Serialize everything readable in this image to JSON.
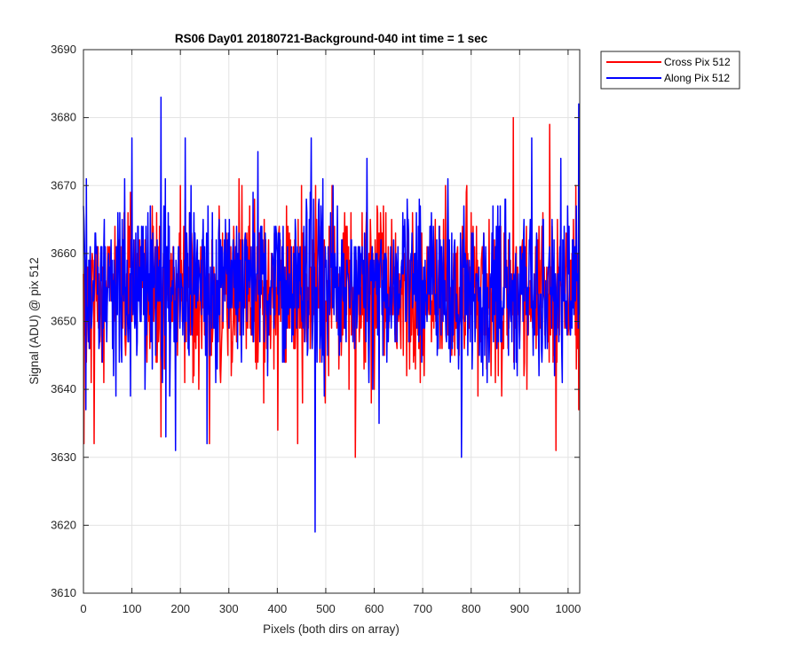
{
  "chart_data": {
    "type": "line",
    "title": "RS06 Day01 20180721-Background-040 int time = 1 sec",
    "xlabel": "Pixels (both dirs on array)",
    "ylabel": "Signal (ADU) @ pix 512",
    "xlim": [
      0,
      1024
    ],
    "ylim": [
      3610,
      3690
    ],
    "xticks": [
      0,
      100,
      200,
      300,
      400,
      500,
      600,
      700,
      800,
      900,
      1000
    ],
    "yticks": [
      3610,
      3620,
      3630,
      3640,
      3650,
      3660,
      3670,
      3680,
      3690
    ],
    "grid": true,
    "legend_position": "outside top-right",
    "series": [
      {
        "name": "Cross Pix 512",
        "color": "#ff0000",
        "mean": 3654,
        "std": 6,
        "n_points": 1024,
        "notable_points": [
          {
            "x": 1,
            "y": 3632
          },
          {
            "x": 22,
            "y": 3632
          },
          {
            "x": 100,
            "y": 3650
          },
          {
            "x": 160,
            "y": 3633
          },
          {
            "x": 220,
            "y": 3649
          },
          {
            "x": 260,
            "y": 3632
          },
          {
            "x": 321,
            "y": 3671
          },
          {
            "x": 353,
            "y": 3668
          },
          {
            "x": 401,
            "y": 3634
          },
          {
            "x": 442,
            "y": 3632
          },
          {
            "x": 450,
            "y": 3670
          },
          {
            "x": 561,
            "y": 3630
          },
          {
            "x": 600,
            "y": 3640
          },
          {
            "x": 887,
            "y": 3680
          },
          {
            "x": 962,
            "y": 3679
          },
          {
            "x": 975,
            "y": 3631
          },
          {
            "x": 1022,
            "y": 3637
          }
        ]
      },
      {
        "name": "Along Pix 512",
        "color": "#0000ff",
        "mean": 3655,
        "std": 6,
        "n_points": 1024,
        "notable_points": [
          {
            "x": 0,
            "y": 3667
          },
          {
            "x": 5,
            "y": 3637
          },
          {
            "x": 100,
            "y": 3677
          },
          {
            "x": 160,
            "y": 3683
          },
          {
            "x": 170,
            "y": 3633
          },
          {
            "x": 190,
            "y": 3631
          },
          {
            "x": 210,
            "y": 3677
          },
          {
            "x": 255,
            "y": 3632
          },
          {
            "x": 360,
            "y": 3675
          },
          {
            "x": 470,
            "y": 3677
          },
          {
            "x": 478,
            "y": 3619
          },
          {
            "x": 585,
            "y": 3674
          },
          {
            "x": 610,
            "y": 3635
          },
          {
            "x": 780,
            "y": 3630
          },
          {
            "x": 925,
            "y": 3677
          },
          {
            "x": 985,
            "y": 3674
          },
          {
            "x": 1022,
            "y": 3682
          }
        ]
      }
    ]
  }
}
